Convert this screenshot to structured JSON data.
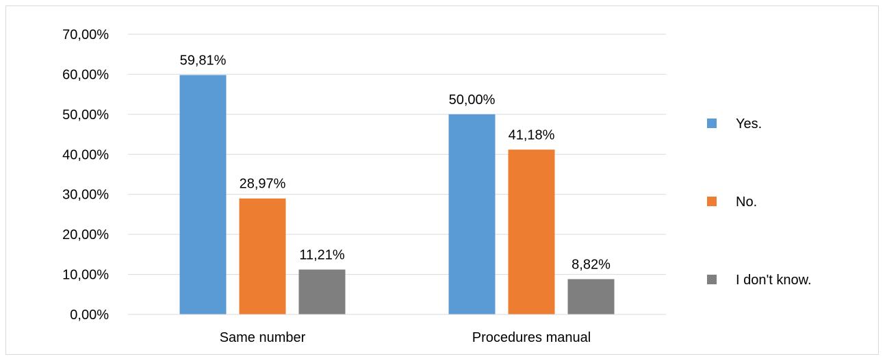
{
  "chart_data": {
    "type": "bar",
    "title": "",
    "xlabel": "",
    "ylabel": "",
    "categories": [
      "Same number",
      "Procedures manual"
    ],
    "series": [
      {
        "name": "Yes.",
        "values": [
          59.81,
          50.0
        ],
        "labels": [
          "59,81%",
          "50,00%"
        ],
        "color": "#5b9bd5"
      },
      {
        "name": "No.",
        "values": [
          28.97,
          41.18
        ],
        "labels": [
          "28,97%",
          "41,18%"
        ],
        "color": "#ed7d31"
      },
      {
        "name": "I don't know.",
        "values": [
          11.21,
          8.82
        ],
        "labels": [
          "11,21%",
          "8,82%"
        ],
        "color": "#7f7f7f"
      }
    ],
    "ylim": [
      0,
      70
    ],
    "yticks": [
      {
        "value": 0,
        "label": "0,00%"
      },
      {
        "value": 10,
        "label": "10,00%"
      },
      {
        "value": 20,
        "label": "20,00%"
      },
      {
        "value": 30,
        "label": "30,00%"
      },
      {
        "value": 40,
        "label": "40,00%"
      },
      {
        "value": 50,
        "label": "50,00%"
      },
      {
        "value": 60,
        "label": "60,00%"
      },
      {
        "value": 70,
        "label": "70,00%"
      }
    ],
    "grid": true,
    "legend_position": "right"
  }
}
